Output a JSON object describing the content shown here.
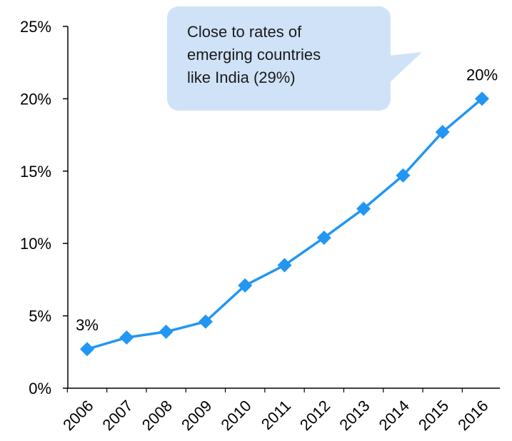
{
  "chart_data": {
    "type": "line",
    "x": [
      "2006",
      "2007",
      "2008",
      "2009",
      "2010",
      "2011",
      "2012",
      "2013",
      "2014",
      "2015",
      "2016"
    ],
    "series": [
      {
        "values": [
          2.7,
          3.5,
          3.9,
          4.6,
          7.1,
          8.5,
          10.4,
          12.4,
          14.7,
          17.7,
          20.0
        ],
        "color": "#2196f3",
        "marker": "diamond"
      }
    ],
    "ylim": [
      0,
      25
    ],
    "yticks": [
      0,
      5,
      10,
      15,
      20,
      25
    ],
    "ytick_labels": [
      "0%",
      "5%",
      "10%",
      "15%",
      "20%",
      "25%"
    ],
    "data_labels": [
      {
        "index": 0,
        "text": "3%"
      },
      {
        "index": 10,
        "text": "20%"
      }
    ],
    "annotation": {
      "lines": [
        "Close to rates of",
        "emerging countries",
        "like India (29%)"
      ],
      "background": "#cfe2f7"
    },
    "grid": false,
    "title": "",
    "xlabel": "",
    "ylabel": ""
  }
}
